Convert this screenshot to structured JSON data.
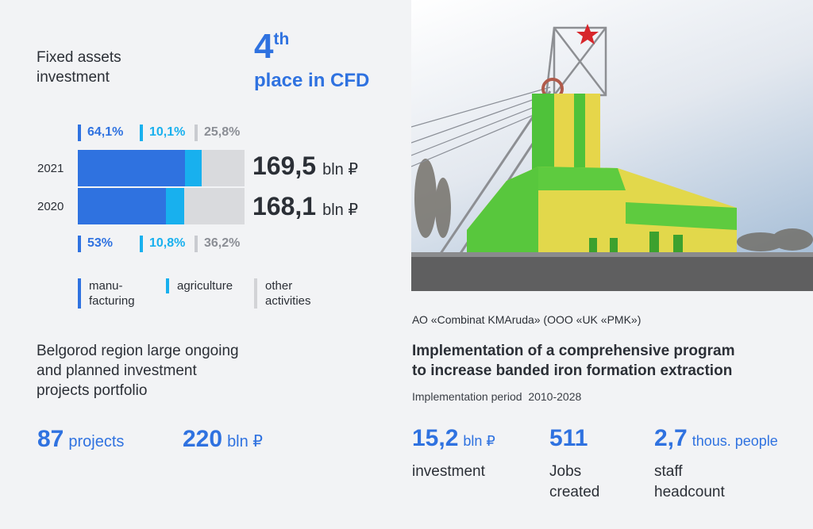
{
  "fixed_assets": {
    "title_line1": "Fixed assets",
    "title_line2": "investment",
    "rank_num": "4",
    "rank_suffix": "th",
    "rank_label": "place in CFD"
  },
  "chart_data": {
    "type": "bar",
    "orientation": "horizontal",
    "stacked": true,
    "percent": true,
    "categories": [
      "2021",
      "2020"
    ],
    "series": [
      {
        "name": "manu-facturing",
        "values": [
          64.1,
          53
        ],
        "labels": [
          "64,1%",
          "53%"
        ],
        "color": "#2f72e0"
      },
      {
        "name": "agriculture",
        "values": [
          10.1,
          10.8
        ],
        "labels": [
          "10,1%",
          "10,8%"
        ],
        "color": "#18b0ee"
      },
      {
        "name": "other activities",
        "values": [
          25.8,
          36.2
        ],
        "labels": [
          "25,8%",
          "36,2%"
        ],
        "color": "#d9dadd"
      }
    ],
    "totals": [
      {
        "year": "2021",
        "value": "169,5",
        "unit": "bln ₽"
      },
      {
        "year": "2020",
        "value": "168,1",
        "unit": "bln ₽"
      }
    ],
    "legend": {
      "manufacturing_line1": "manu-",
      "manufacturing_line2": "facturing",
      "agriculture": "agriculture",
      "other_line1": "other",
      "other_line2": "activities"
    }
  },
  "portfolio": {
    "title_line1": "Belgorod region large ongoing",
    "title_line2": "and planned investment",
    "title_line3": "projects portfolio",
    "projects_num": "87",
    "projects_unit": "projects",
    "amount_num": "220",
    "amount_unit": "bln ₽"
  },
  "project": {
    "company": "АО «Combinat KMAruda» (ООО «UK «PMK»)",
    "title_line1": "Implementation of a comprehensive program",
    "title_line2": "to increase banded iron formation extraction",
    "period_label": "Implementation period",
    "period_value": "2010-2028",
    "stats": [
      {
        "num": "15,2",
        "unit": "bln ₽",
        "caption1": "investment",
        "caption2": ""
      },
      {
        "num": "511",
        "unit": "",
        "caption1": "Jobs",
        "caption2": "created"
      },
      {
        "num": "2,7",
        "unit": "thous. people",
        "caption1": "staff",
        "caption2": "headcount"
      }
    ]
  },
  "colors": {
    "accent": "#2f72e0",
    "agriculture": "#18b0ee",
    "other": "#d9dadd",
    "background": "#f2f3f5"
  }
}
